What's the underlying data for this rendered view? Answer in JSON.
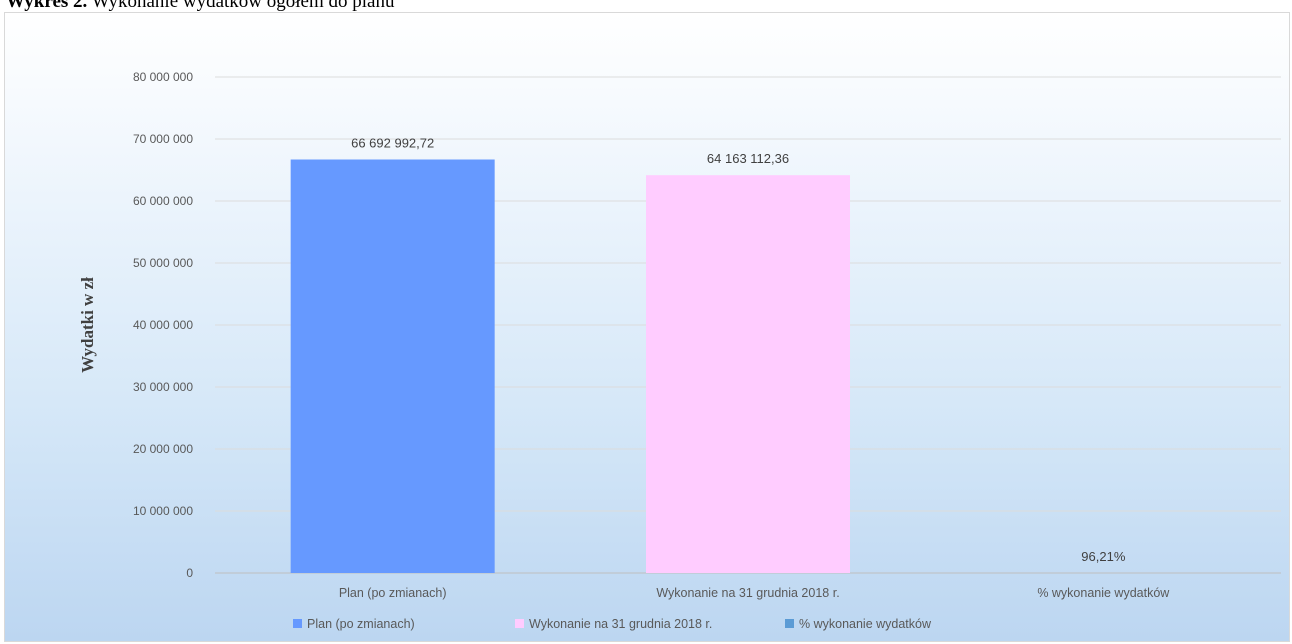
{
  "caption": {
    "bold": "Wykres 2.",
    "text": " Wykonanie wydatków ogółem do planu"
  },
  "colors": {
    "plan": "#6699ff",
    "wykonanie": "#ffccff",
    "procent": "#5b9bd5"
  },
  "chart_data": {
    "type": "bar",
    "title": "",
    "ylabel": "Wydatki w zł",
    "xlabel": "",
    "ylim": [
      0,
      80000000
    ],
    "yticks": [
      0,
      10000000,
      20000000,
      30000000,
      40000000,
      50000000,
      60000000,
      70000000,
      80000000
    ],
    "ytick_labels": [
      "0",
      "10 000 000",
      "20 000 000",
      "30 000 000",
      "40 000 000",
      "50 000 000",
      "60 000 000",
      "70 000 000",
      "80 000 000"
    ],
    "categories": [
      "Plan (po zmianach)",
      "Wykonanie na 31 grudnia 2018 r.",
      "% wykonanie wydatków"
    ],
    "values": [
      66692992.72,
      64163112.36,
      0.9621
    ],
    "data_labels": [
      "66 692 992,72",
      "64 163 112,36",
      "96,21%"
    ],
    "legend": [
      "Plan (po zmianach)",
      "Wykonanie na 31 grudnia 2018 r.",
      "% wykonanie wydatków"
    ],
    "legend_position": "bottom",
    "grid": true
  }
}
